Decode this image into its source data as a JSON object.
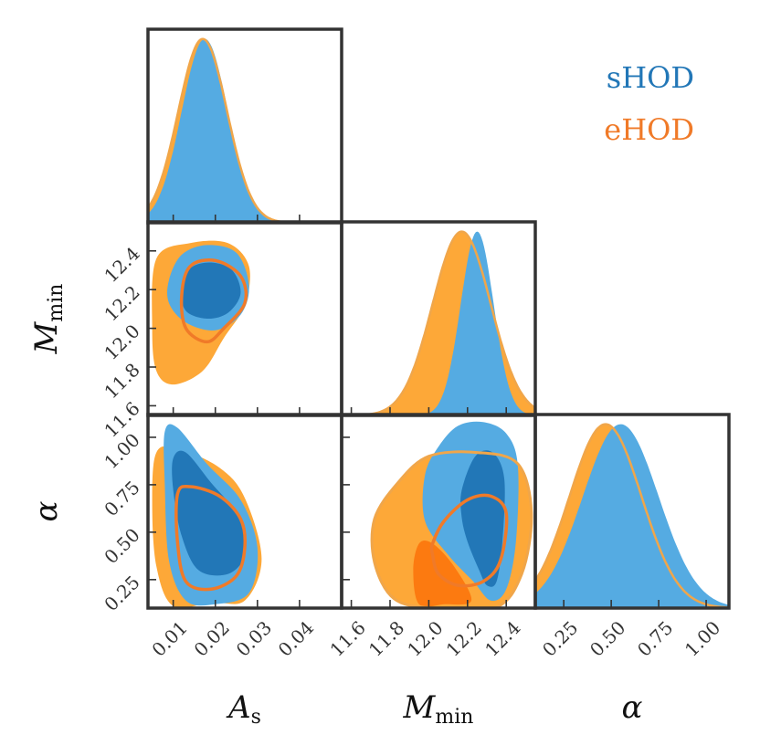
{
  "colors": {
    "shod_outer": "#55abe2",
    "shod_inner": "#2277b7",
    "ehod_outer": "#fda838",
    "ehod_inner": "#fc7a10",
    "ehod_line": "#f0a64a",
    "ehod_contour": "#f07a28",
    "frame": "#333333"
  },
  "chart_data": {
    "type": "corner",
    "parameters": [
      {
        "key": "As",
        "label_main": "A",
        "label_sub": "s",
        "range": [
          0.004,
          0.05
        ],
        "ticks": [
          0.01,
          0.02,
          0.03,
          0.04
        ],
        "tick_labels": [
          "0.01",
          "0.02",
          "0.03",
          "0.04"
        ]
      },
      {
        "key": "Mmin",
        "label_main": "M",
        "label_sub": "min",
        "range": [
          11.55,
          12.55
        ],
        "ticks": [
          11.6,
          11.8,
          12.0,
          12.2,
          12.4
        ],
        "tick_labels": [
          "11.6",
          "11.8",
          "12.0",
          "12.2",
          "12.4"
        ]
      },
      {
        "key": "alpha",
        "label_main": "α",
        "label_sub": "",
        "range": [
          0.1,
          1.12
        ],
        "ticks": [
          0.25,
          0.5,
          0.75,
          1.0
        ],
        "tick_labels": [
          "0.25",
          "0.50",
          "0.75",
          "1.00"
        ]
      }
    ],
    "series": [
      {
        "name": "sHOD",
        "style": "filled",
        "marginals": {
          "As": {
            "mean": 0.0175,
            "sd": 0.0055
          },
          "Mmin": {
            "mean": 12.25,
            "sd": 0.085
          },
          "alpha": {
            "mean": 0.55,
            "sd": 0.2
          }
        },
        "contours": {
          "Mmin_As": {
            "outer": [
              [
                0.009,
                12.25
              ],
              [
                0.012,
                12.38
              ],
              [
                0.018,
                12.43
              ],
              [
                0.025,
                12.39
              ],
              [
                0.028,
                12.22
              ],
              [
                0.026,
                12.07
              ],
              [
                0.02,
                11.99
              ],
              [
                0.013,
                12.03
              ],
              [
                0.009,
                12.13
              ]
            ],
            "inner": [
              [
                0.012,
                12.2
              ],
              [
                0.014,
                12.31
              ],
              [
                0.019,
                12.34
              ],
              [
                0.024,
                12.3
              ],
              [
                0.026,
                12.18
              ],
              [
                0.023,
                12.08
              ],
              [
                0.018,
                12.05
              ],
              [
                0.013,
                12.09
              ]
            ]
          },
          "alpha_As": {
            "outer": [
              [
                0.008,
                1.03
              ],
              [
                0.011,
                1.05
              ],
              [
                0.018,
                0.86
              ],
              [
                0.026,
                0.67
              ],
              [
                0.03,
                0.42
              ],
              [
                0.028,
                0.18
              ],
              [
                0.02,
                0.12
              ],
              [
                0.013,
                0.14
              ],
              [
                0.009,
                0.35
              ],
              [
                0.008,
                0.75
              ]
            ],
            "inner": [
              [
                0.01,
                0.89
              ],
              [
                0.013,
                0.92
              ],
              [
                0.019,
                0.76
              ],
              [
                0.026,
                0.57
              ],
              [
                0.027,
                0.38
              ],
              [
                0.023,
                0.28
              ],
              [
                0.016,
                0.3
              ],
              [
                0.012,
                0.48
              ],
              [
                0.01,
                0.72
              ]
            ]
          },
          "alpha_Mmin": {
            "outer": [
              [
                12.05,
                0.95
              ],
              [
                12.15,
                1.06
              ],
              [
                12.28,
                1.08
              ],
              [
                12.4,
                1.02
              ],
              [
                12.46,
                0.85
              ],
              [
                12.45,
                0.45
              ],
              [
                12.4,
                0.2
              ],
              [
                12.32,
                0.14
              ],
              [
                12.23,
                0.24
              ],
              [
                12.1,
                0.38
              ],
              [
                11.98,
                0.56
              ],
              [
                11.98,
                0.8
              ]
            ],
            "inner": [
              [
                12.17,
                0.72
              ],
              [
                12.24,
                0.9
              ],
              [
                12.33,
                0.92
              ],
              [
                12.39,
                0.78
              ],
              [
                12.38,
                0.45
              ],
              [
                12.35,
                0.24
              ],
              [
                12.3,
                0.22
              ],
              [
                12.26,
                0.3
              ],
              [
                12.2,
                0.45
              ],
              [
                12.17,
                0.58
              ]
            ]
          }
        }
      },
      {
        "name": "eHOD",
        "style": "outer-filled-inner-line",
        "marginals": {
          "As": {
            "mean": 0.017,
            "sd": 0.0058
          },
          "Mmin": {
            "mean": 12.17,
            "sd": 0.15
          },
          "alpha": {
            "mean": 0.47,
            "sd": 0.19
          }
        },
        "contours": {
          "Mmin_As": {
            "outer": [
              [
                0.006,
                12.36
              ],
              [
                0.014,
                12.44
              ],
              [
                0.023,
                12.44
              ],
              [
                0.028,
                12.32
              ],
              [
                0.027,
                12.12
              ],
              [
                0.022,
                11.95
              ],
              [
                0.017,
                11.78
              ],
              [
                0.01,
                11.71
              ],
              [
                0.006,
                11.78
              ],
              [
                0.005,
                12.0
              ]
            ],
            "inner": [
              [
                0.012,
                12.17
              ],
              [
                0.014,
                12.32
              ],
              [
                0.02,
                12.35
              ],
              [
                0.026,
                12.27
              ],
              [
                0.027,
                12.13
              ],
              [
                0.022,
                12.0
              ],
              [
                0.018,
                11.93
              ],
              [
                0.013,
                12.0
              ]
            ]
          },
          "alpha_As": {
            "outer": [
              [
                0.006,
                0.92
              ],
              [
                0.011,
                0.94
              ],
              [
                0.021,
                0.84
              ],
              [
                0.027,
                0.68
              ],
              [
                0.031,
                0.36
              ],
              [
                0.027,
                0.14
              ],
              [
                0.019,
                0.13
              ],
              [
                0.01,
                0.11
              ],
              [
                0.006,
                0.32
              ],
              [
                0.005,
                0.66
              ]
            ],
            "inner": [
              [
                0.011,
                0.7
              ],
              [
                0.014,
                0.74
              ],
              [
                0.021,
                0.69
              ],
              [
                0.026,
                0.57
              ],
              [
                0.027,
                0.42
              ],
              [
                0.025,
                0.27
              ],
              [
                0.019,
                0.2
              ],
              [
                0.013,
                0.24
              ],
              [
                0.011,
                0.45
              ]
            ]
          },
          "alpha_Mmin": {
            "outer": [
              [
                11.72,
                0.57
              ],
              [
                11.84,
                0.76
              ],
              [
                12.0,
                0.9
              ],
              [
                12.25,
                0.92
              ],
              [
                12.46,
                0.86
              ],
              [
                12.53,
                0.6
              ],
              [
                12.48,
                0.28
              ],
              [
                12.34,
                0.1
              ],
              [
                12.02,
                0.1
              ],
              [
                11.82,
                0.15
              ],
              [
                11.72,
                0.34
              ]
            ],
            "inner": [
              [
                11.95,
                0.12
              ],
              [
                12.08,
                0.12
              ],
              [
                12.22,
                0.14
              ],
              [
                12.13,
                0.32
              ],
              [
                12.02,
                0.44
              ],
              [
                11.95,
                0.44
              ],
              [
                11.92,
                0.3
              ]
            ],
            "line": [
              [
                12.02,
                0.44
              ],
              [
                12.08,
                0.56
              ],
              [
                12.2,
                0.67
              ],
              [
                12.32,
                0.69
              ],
              [
                12.4,
                0.6
              ],
              [
                12.37,
                0.35
              ],
              [
                12.28,
                0.24
              ],
              [
                12.15,
                0.22
              ],
              [
                12.05,
                0.28
              ],
              [
                12.02,
                0.38
              ]
            ]
          }
        }
      }
    ],
    "legend": {
      "position": "top-right",
      "entries": [
        "sHOD",
        "eHOD"
      ]
    }
  }
}
